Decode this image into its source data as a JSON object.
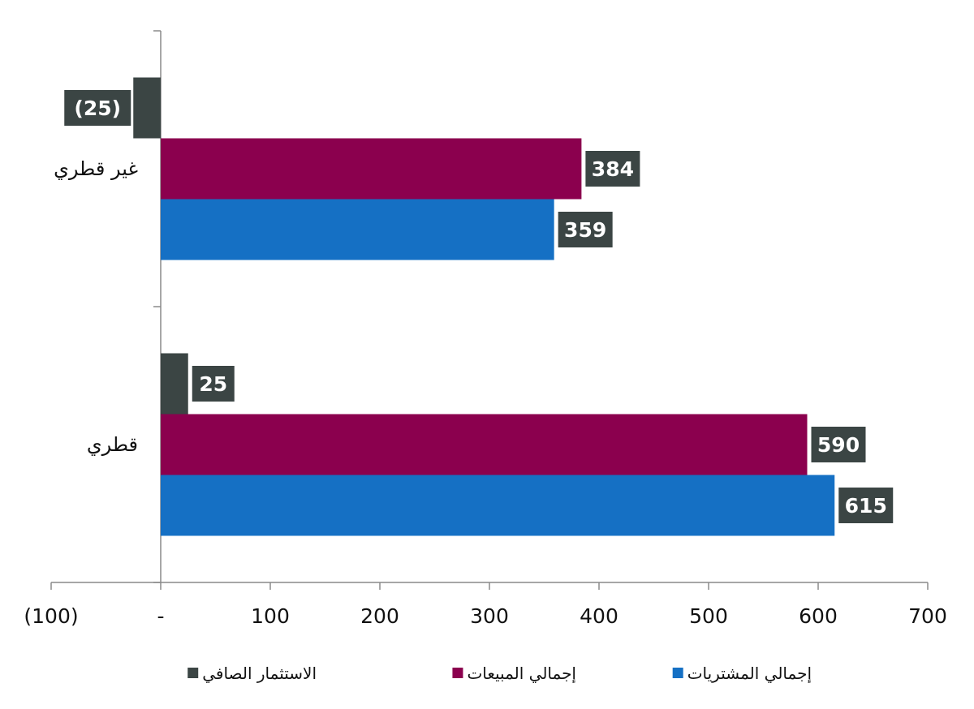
{
  "chart_data": {
    "type": "bar",
    "orientation": "horizontal",
    "categories": [
      "غير قطري",
      "قطري"
    ],
    "series": [
      {
        "name": "الاستثمار الصافي",
        "color": "#3b4544",
        "values": [
          -25,
          25
        ],
        "labels": [
          "(25)",
          "25"
        ]
      },
      {
        "name": "إجمالي المبيعات",
        "color": "#8b004e",
        "values": [
          384,
          590
        ],
        "labels": [
          "384",
          "590"
        ]
      },
      {
        "name": "إجمالي المشتريات",
        "color": "#1570c4",
        "values": [
          359,
          615
        ],
        "labels": [
          "359",
          "615"
        ]
      }
    ],
    "xlim": [
      -100,
      700
    ],
    "x_ticks": [
      -100,
      0,
      100,
      200,
      300,
      400,
      500,
      600,
      700
    ],
    "x_tick_labels": [
      "(100)",
      "-",
      "100",
      "200",
      "300",
      "400",
      "500",
      "600",
      "700"
    ],
    "label_box_color": "#3b4544",
    "grid": false,
    "legend_position": "bottom"
  }
}
